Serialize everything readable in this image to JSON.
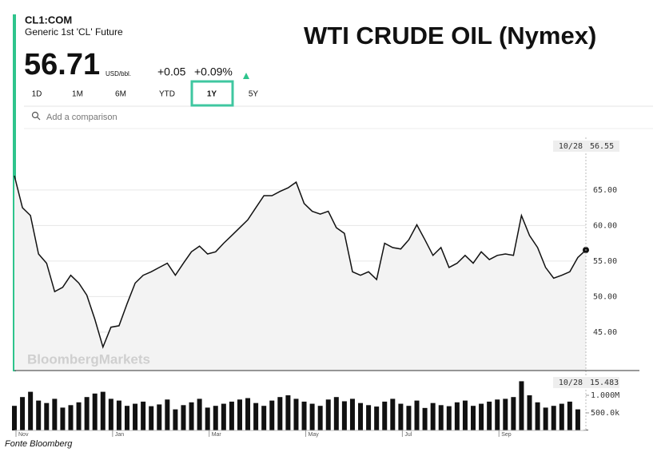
{
  "header": {
    "ticker": "CL1:COM",
    "name": "Generic 1st 'CL' Future",
    "price": "56.71",
    "unit": "USD/bbl.",
    "change": "+0.05",
    "change_pct": "+0.09%",
    "ranges": [
      "1D",
      "1M",
      "6M",
      "YTD",
      "1Y",
      "5Y"
    ],
    "selected_range": "1Y",
    "search_placeholder": "Add a comparison"
  },
  "overlay_title": "WTI CRUDE OIL (Nymex)",
  "watermark": "BloombergMarkets",
  "source": "Fonte Bloomberg",
  "chart_data": [
    {
      "type": "line",
      "color": "#111111",
      "categories": [
        "Nov",
        null,
        null,
        null,
        null,
        null,
        null,
        null,
        null,
        null,
        null,
        null,
        "Jan",
        null,
        null,
        null,
        null,
        null,
        null,
        null,
        null,
        null,
        null,
        null,
        "Mar",
        null,
        null,
        null,
        null,
        null,
        null,
        null,
        null,
        null,
        null,
        null,
        "May",
        null,
        null,
        null,
        null,
        null,
        null,
        null,
        null,
        null,
        null,
        null,
        "Jul",
        null,
        null,
        null,
        null,
        null,
        null,
        null,
        null,
        null,
        null,
        null,
        "Sep",
        null,
        null,
        null,
        null,
        null,
        null,
        null,
        null,
        null,
        null,
        null
      ],
      "values": [
        67.0,
        62.5,
        61.4,
        56.0,
        54.7,
        50.7,
        51.3,
        53.0,
        51.9,
        50.2,
        46.8,
        42.9,
        45.7,
        45.9,
        49.0,
        51.9,
        53.0,
        53.5,
        54.1,
        54.7,
        53.0,
        54.7,
        56.3,
        57.1,
        56.0,
        56.3,
        57.5,
        58.6,
        59.7,
        60.8,
        62.5,
        64.2,
        64.2,
        64.8,
        65.3,
        66.1,
        63.1,
        62.0,
        61.6,
        62.0,
        59.7,
        58.9,
        53.5,
        53.0,
        53.5,
        52.4,
        57.5,
        56.9,
        56.7,
        58.0,
        60.1,
        58.0,
        55.8,
        56.9,
        54.1,
        54.7,
        55.8,
        54.7,
        56.3,
        55.2,
        55.8,
        56.0,
        55.8,
        61.4,
        58.6,
        56.9,
        54.1,
        52.6,
        53.0,
        53.5,
        55.5,
        56.55
      ],
      "ylim": [
        39.6,
        72.4
      ],
      "yticks": [
        {
          "value": 45,
          "label": "45.00"
        },
        {
          "value": 50,
          "label": "50.00"
        },
        {
          "value": 55,
          "label": "55.00"
        },
        {
          "value": 60,
          "label": "60.00"
        },
        {
          "value": 65,
          "label": "65.00"
        }
      ],
      "grid": true,
      "last_date": "10/28",
      "last_value": 56.55
    },
    {
      "type": "bar",
      "color": "#111111",
      "values": [
        700000,
        950000,
        1100000,
        850000,
        780000,
        900000,
        650000,
        720000,
        800000,
        950000,
        1050000,
        1100000,
        900000,
        850000,
        700000,
        760000,
        820000,
        690000,
        740000,
        880000,
        600000,
        720000,
        800000,
        900000,
        650000,
        700000,
        760000,
        820000,
        880000,
        920000,
        780000,
        700000,
        850000,
        950000,
        1000000,
        900000,
        820000,
        760000,
        700000,
        880000,
        950000,
        830000,
        900000,
        780000,
        720000,
        680000,
        820000,
        900000,
        760000,
        700000,
        850000,
        640000,
        780000,
        720000,
        690000,
        800000,
        850000,
        700000,
        760000,
        820000,
        880000,
        900000,
        950000,
        1400000,
        1000000,
        800000,
        650000,
        700000,
        760000,
        820000,
        600000,
        15483
      ],
      "ylim": [
        0,
        1500000
      ],
      "yticks": [
        {
          "value": 500000,
          "label": "500.0k"
        },
        {
          "value": 1000000,
          "label": "1.000M"
        }
      ],
      "last_date": "10/28",
      "last_value": {
        "value": 15483,
        "label": "15.483"
      }
    }
  ]
}
